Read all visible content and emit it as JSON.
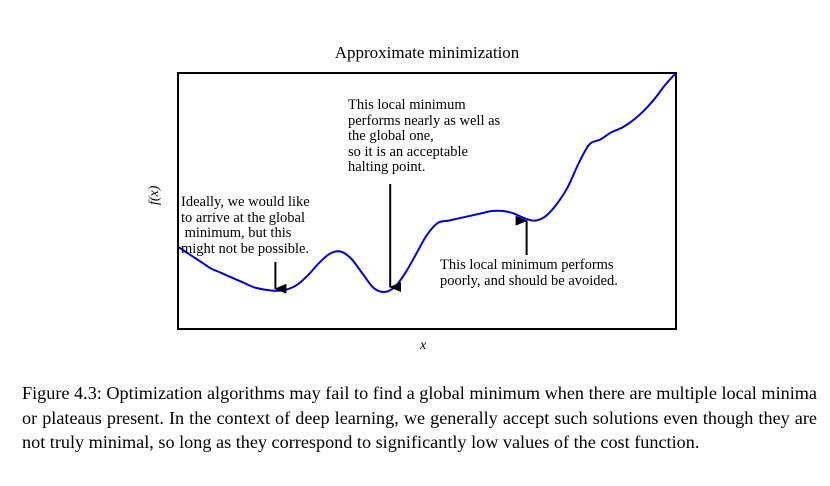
{
  "chart_data": {
    "type": "line",
    "title": "Approximate minimization",
    "xlabel": "x",
    "ylabel": "f(x)",
    "grid": false,
    "ticks": false,
    "series": [
      {
        "color": "#0000dd",
        "points": [
          [
            0,
            0.27
          ],
          [
            5,
            0.24
          ],
          [
            10,
            0.21
          ],
          [
            15,
            0.18
          ],
          [
            20,
            0.16
          ],
          [
            25,
            0.14
          ],
          [
            30,
            0.12
          ],
          [
            35,
            0.1
          ],
          [
            40,
            0.09
          ],
          [
            45,
            0.085
          ],
          [
            50,
            0.09
          ],
          [
            55,
            0.11
          ],
          [
            60,
            0.15
          ],
          [
            65,
            0.2
          ],
          [
            70,
            0.24
          ],
          [
            75,
            0.25
          ],
          [
            80,
            0.22
          ],
          [
            85,
            0.16
          ],
          [
            90,
            0.1
          ],
          [
            95,
            0.08
          ],
          [
            100,
            0.1
          ],
          [
            105,
            0.16
          ],
          [
            110,
            0.24
          ],
          [
            115,
            0.32
          ],
          [
            120,
            0.37
          ],
          [
            125,
            0.38
          ],
          [
            130,
            0.39
          ],
          [
            135,
            0.4
          ],
          [
            140,
            0.41
          ],
          [
            145,
            0.42
          ],
          [
            150,
            0.42
          ],
          [
            155,
            0.41
          ],
          [
            160,
            0.39
          ],
          [
            165,
            0.38
          ],
          [
            170,
            0.4
          ],
          [
            175,
            0.45
          ],
          [
            180,
            0.52
          ],
          [
            185,
            0.62
          ],
          [
            190,
            0.7
          ],
          [
            195,
            0.72
          ],
          [
            200,
            0.75
          ],
          [
            205,
            0.77
          ],
          [
            210,
            0.8
          ],
          [
            215,
            0.84
          ],
          [
            220,
            0.89
          ],
          [
            225,
            0.95
          ],
          [
            230,
            1.0
          ]
        ]
      }
    ],
    "annotations": [
      {
        "lines": [
          "Ideally, we would like",
          "to arrive at the global",
          " minimum, but this",
          "might not be possible."
        ],
        "arrow_to_x": 45,
        "direction": "down"
      },
      {
        "lines": [
          "This local minimum",
          "performs nearly as well as",
          "the global one,",
          "so it is an acceptable",
          "halting point."
        ],
        "arrow_to_x": 98,
        "direction": "down"
      },
      {
        "lines": [
          "This local minimum performs",
          "poorly, and should be avoided."
        ],
        "arrow_to_x": 161,
        "direction": "up"
      }
    ]
  },
  "caption": "Figure 4.3: Optimization algorithms may fail to find a global minimum when there are multiple local minima or plateaus present. In the context of deep learning, we generally accept such solutions even though they are not truly minimal, so long as they correspond to significantly low values of the cost function."
}
